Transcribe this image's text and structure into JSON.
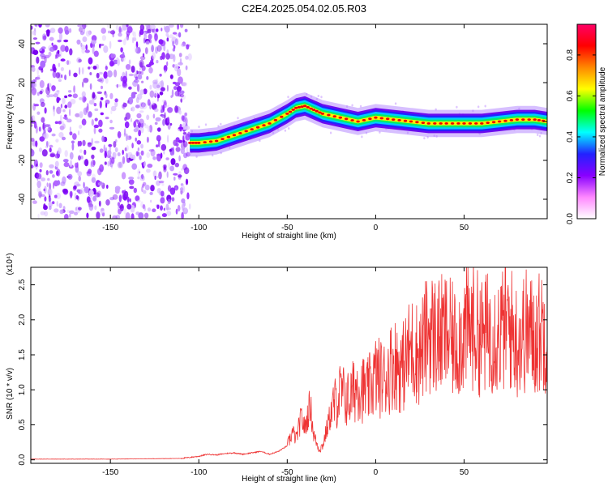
{
  "title": "C2E4.2025.054.02.05.R03",
  "chart_data": [
    {
      "type": "heatmap",
      "xlabel": "Height of straight line (km)",
      "ylabel": "Frequency (Hz)",
      "xlim": [
        -195,
        97
      ],
      "ylim": [
        -50,
        50
      ],
      "x_ticks": [
        -150,
        -100,
        -50,
        0,
        50
      ],
      "x_tick_labels": [
        "-150",
        "-100",
        "-50",
        "0",
        "50"
      ],
      "y_ticks": [
        -40,
        -20,
        0,
        20,
        40
      ],
      "y_tick_labels": [
        "-40",
        "-20",
        "0",
        "20",
        "40"
      ],
      "noise_region_x": [
        -195,
        -105
      ],
      "ridge": {
        "x": [
          -105,
          -100,
          -90,
          -80,
          -70,
          -60,
          -50,
          -45,
          -40,
          -35,
          -30,
          -20,
          -10,
          0,
          10,
          20,
          30,
          40,
          50,
          60,
          70,
          80,
          90,
          97
        ],
        "frequency": [
          -11,
          -11,
          -10,
          -7,
          -4,
          -1,
          4,
          7,
          8,
          6,
          4,
          2,
          0,
          2,
          1,
          0,
          -1,
          -1,
          -1,
          -1,
          0,
          1,
          1,
          0
        ]
      },
      "colorbar": {
        "label": "Normalized spectral amplitude",
        "range": [
          0,
          0.95
        ],
        "ticks": [
          0.0,
          0.2,
          0.4,
          0.6,
          0.8
        ],
        "tick_labels": [
          "0.0",
          "0.2",
          "0.4",
          "0.6",
          "0.8"
        ],
        "colors": [
          "#ffffff",
          "#ff88ff",
          "#8800ff",
          "#2222ff",
          "#00ffff",
          "#00ff00",
          "#ffff00",
          "#ff8800",
          "#ff0000",
          "#ff0066"
        ]
      },
      "grid": false
    },
    {
      "type": "line",
      "xlabel": "Height of straight line (km)",
      "ylabel": "SNR (10 * v/v)",
      "y_multiplier": "(x10⁴)",
      "xlim": [
        -195,
        97
      ],
      "ylim": [
        -0.05,
        2.75
      ],
      "x_ticks": [
        -150,
        -100,
        -50,
        0,
        50
      ],
      "x_tick_labels": [
        "-150",
        "-100",
        "-50",
        "0",
        "50"
      ],
      "y_ticks": [
        0.0,
        0.5,
        1.0,
        1.5,
        2.0,
        2.5
      ],
      "y_tick_labels": [
        "0.0",
        "0.5",
        "1.0",
        "1.5",
        "2.0",
        "2.5"
      ],
      "color": "#ee3333",
      "series": [
        {
          "x": [
            -195,
            -150,
            -110,
            -100,
            -95,
            -90,
            -85,
            -80,
            -75,
            -70,
            -65,
            -60,
            -55,
            -50,
            -47,
            -45,
            -42,
            -40,
            -37,
            -35,
            -32,
            -30,
            -28,
            -25,
            -20,
            -15,
            -10,
            -5,
            0,
            5,
            10,
            15,
            20,
            25,
            30,
            35,
            40,
            45,
            50,
            55,
            60,
            65,
            70,
            75,
            80,
            85,
            90,
            95,
            97
          ],
          "values": [
            0.01,
            0.01,
            0.02,
            0.05,
            0.08,
            0.07,
            0.09,
            0.1,
            0.08,
            0.1,
            0.12,
            0.08,
            0.12,
            0.2,
            0.4,
            0.3,
            0.6,
            0.45,
            0.8,
            0.35,
            0.15,
            0.2,
            0.4,
            0.7,
            0.95,
            0.85,
            1.1,
            0.95,
            1.2,
            1.15,
            1.4,
            1.3,
            1.6,
            1.5,
            1.85,
            1.75,
            1.8,
            1.65,
            1.85,
            1.9,
            1.75,
            1.85,
            1.8,
            1.95,
            1.7,
            1.85,
            1.75,
            1.9,
            1.8
          ]
        }
      ],
      "grid": false
    }
  ]
}
